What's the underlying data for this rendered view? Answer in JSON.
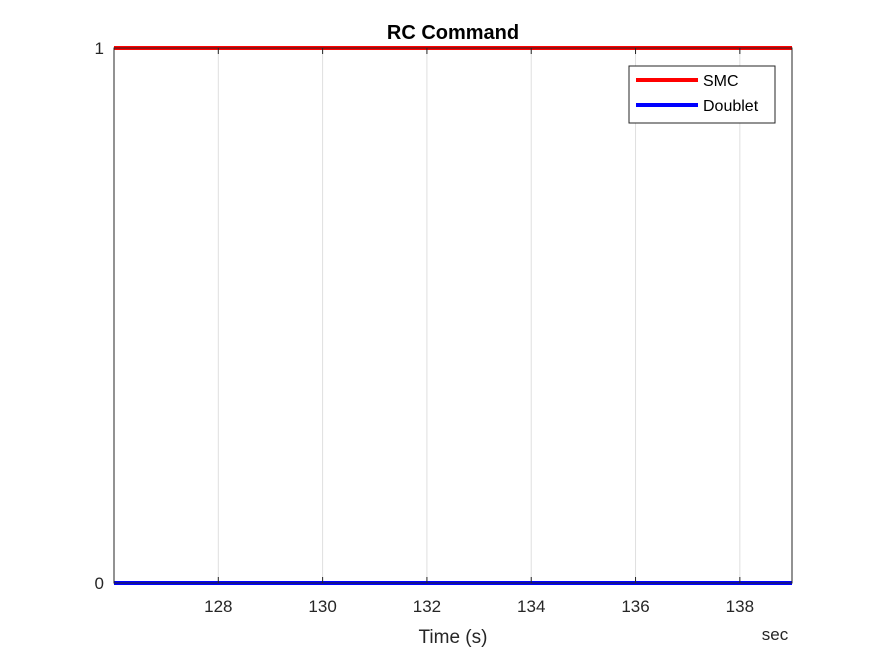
{
  "chart_data": {
    "type": "line",
    "title": "RC Command",
    "xlabel": "Time (s)",
    "ylabel": "",
    "x_unit_label": "sec",
    "xlim": [
      126,
      139
    ],
    "ylim": [
      0,
      1
    ],
    "xticks": [
      128,
      130,
      132,
      134,
      136,
      138
    ],
    "yticks": [
      0,
      1
    ],
    "grid": "x-only",
    "legend_position": "top-right",
    "series": [
      {
        "name": "SMC",
        "color": "#ff0000",
        "x": [
          126,
          139
        ],
        "y": [
          1,
          1
        ]
      },
      {
        "name": "Doublet",
        "color": "#0000ff",
        "x": [
          126,
          139
        ],
        "y": [
          0,
          0
        ]
      }
    ]
  }
}
